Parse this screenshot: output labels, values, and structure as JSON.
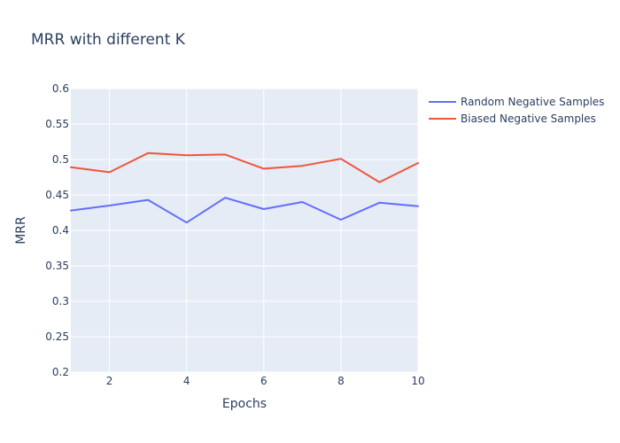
{
  "chart_data": {
    "type": "line",
    "title": "MRR with different K",
    "xlabel": "Epochs",
    "ylabel": "MRR",
    "xlim": [
      1,
      10
    ],
    "ylim": [
      0.2,
      0.6
    ],
    "x_ticks": [
      2,
      4,
      6,
      8,
      10
    ],
    "y_ticks": [
      0.2,
      0.25,
      0.3,
      0.35,
      0.4,
      0.45,
      0.5,
      0.55,
      0.6
    ],
    "y_tick_labels": [
      "0.2",
      "0.25",
      "0.3",
      "0.35",
      "0.4",
      "0.45",
      "0.5",
      "0.55",
      "0.6"
    ],
    "grid": true,
    "legend_position": "top-right",
    "plot_background": "#e5ecf6",
    "x": [
      1,
      2,
      3,
      4,
      5,
      6,
      7,
      8,
      9,
      10
    ],
    "series": [
      {
        "name": "Random Negative Samples",
        "color": "#636efa",
        "values": [
          0.428,
          0.435,
          0.443,
          0.411,
          0.446,
          0.43,
          0.44,
          0.415,
          0.439,
          0.434
        ]
      },
      {
        "name": "Biased Negative Samples",
        "color": "#ef553b",
        "values": [
          0.489,
          0.482,
          0.509,
          0.506,
          0.507,
          0.487,
          0.491,
          0.501,
          0.468,
          0.495
        ]
      }
    ]
  }
}
